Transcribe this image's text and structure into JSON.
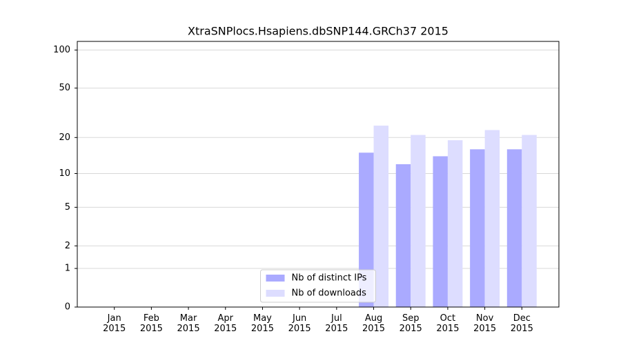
{
  "chart_data": {
    "type": "bar",
    "title": "XtraSNPlocs.Hsapiens.dbSNP144.GRCh37 2015",
    "categories": [
      "Jan 2015",
      "Feb 2015",
      "Mar 2015",
      "Apr 2015",
      "May 2015",
      "Jun 2015",
      "Jul 2015",
      "Aug 2015",
      "Sep 2015",
      "Oct 2015",
      "Nov 2015",
      "Dec 2015"
    ],
    "series": [
      {
        "name": "Nb of distinct IPs",
        "color": "#aaaaff",
        "values": [
          0,
          0,
          0,
          0,
          0,
          0,
          0,
          15,
          12,
          14,
          16,
          16
        ]
      },
      {
        "name": "Nb of downloads",
        "color": "#ddddff",
        "values": [
          0,
          0,
          0,
          0,
          0,
          0,
          0,
          25,
          21,
          19,
          23,
          21
        ]
      }
    ],
    "yscale": "log1p",
    "ylim": [
      0,
      117
    ],
    "yticks": [
      0,
      1,
      2,
      5,
      10,
      20,
      50,
      100
    ],
    "grid": true,
    "legend": "lower center"
  }
}
